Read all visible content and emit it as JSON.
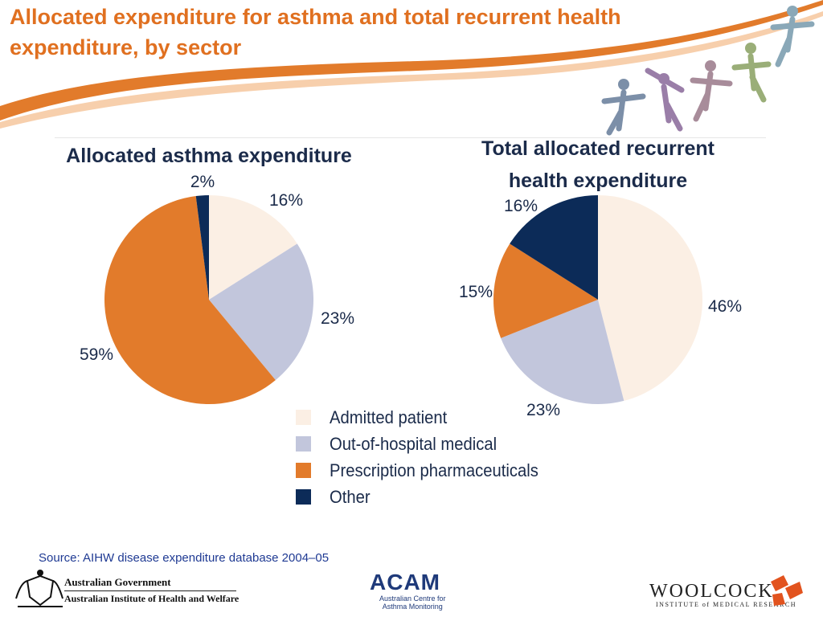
{
  "slide": {
    "title": "Allocated expenditure for asthma and total recurrent health expenditure, by sector",
    "source": "Source: AIHW disease expenditure database 2004–05"
  },
  "colors": {
    "title": "#e07020",
    "admitted": "#fbefe4",
    "out_of_hospital": "#c2c6dc",
    "pharmaceuticals": "#e27b2b",
    "other": "#0c2b58",
    "text": "#1b2b4a"
  },
  "chart_data": [
    {
      "type": "pie",
      "title": "Allocated asthma expenditure",
      "categories": [
        "Admitted patient",
        "Out-of-hospital medical",
        "Prescription pharmaceuticals",
        "Other"
      ],
      "values": [
        16,
        23,
        59,
        2
      ],
      "labels": [
        "16%",
        "23%",
        "59%",
        "2%"
      ],
      "unit": "%"
    },
    {
      "type": "pie",
      "title": "Total allocated recurrent health expenditure",
      "categories": [
        "Admitted patient",
        "Out-of-hospital medical",
        "Prescription pharmaceuticals",
        "Other"
      ],
      "values": [
        46,
        23,
        15,
        16
      ],
      "labels": [
        "46%",
        "23%",
        "15%",
        "16%"
      ],
      "unit": "%"
    }
  ],
  "legend": [
    {
      "label": "Admitted patient",
      "color": "#fbefe4"
    },
    {
      "label": "Out-of-hospital medical",
      "color": "#c2c6dc"
    },
    {
      "label": "Prescription pharmaceuticals",
      "color": "#e27b2b"
    },
    {
      "label": "Other",
      "color": "#0c2b58"
    }
  ],
  "logos": {
    "gov_line1": "Australian Government",
    "gov_line2": "Australian Institute of Health and Welfare",
    "acam": "ACAM",
    "acam_sub1": "Australian Centre for",
    "acam_sub2": "Asthma Monitoring",
    "woolcock": "WOOLCOCK",
    "woolcock_sub": "INSTITUTE of MEDICAL RESEARCH"
  }
}
